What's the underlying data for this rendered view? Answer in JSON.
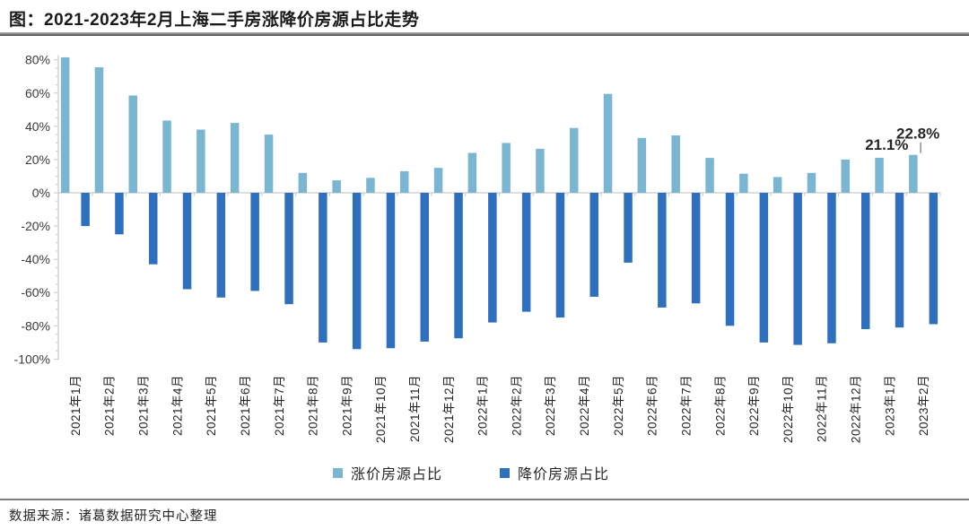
{
  "page": {
    "title": "图：2021-2023年2月上海二手房涨降价房源占比走势",
    "source": "数据来源：诸葛数据研究中心整理"
  },
  "colors": {
    "up_bar": "#7AB6D1",
    "down_bar": "#2E6FBE",
    "axis": "#C9C9C9",
    "tick_label": "#3A3A3A",
    "category_label": "#262626",
    "annotation_text": "#262626"
  },
  "legend": {
    "up_label": "涨价房源占比",
    "down_label": "降价房源占比"
  },
  "chart_data": {
    "type": "bar",
    "title": "图：2021-2023年2月上海二手房涨降价房源占比走势",
    "xlabel": "",
    "ylabel": "",
    "ylim": [
      -100,
      80
    ],
    "ytick_step": 20,
    "ytick_minor_step": 5,
    "ytick_format": "percent",
    "grid": false,
    "legend_position": "bottom",
    "categories": [
      "2021年1月",
      "2021年2月",
      "2021年3月",
      "2021年4月",
      "2021年5月",
      "2021年6月",
      "2021年7月",
      "2021年8月",
      "2021年9月",
      "2021年10月",
      "2021年11月",
      "2021年12月",
      "2022年1月",
      "2022年2月",
      "2022年3月",
      "2022年4月",
      "2022年5月",
      "2022年6月",
      "2022年7月",
      "2022年8月",
      "2022年9月",
      "2022年10月",
      "2022年11月",
      "2022年12月",
      "2023年1月",
      "2023年2月"
    ],
    "series": [
      {
        "name": "涨价房源占比",
        "color": "#7AB6D1",
        "values": [
          81.5,
          75.5,
          58.5,
          43.5,
          38,
          42,
          35,
          12,
          7.5,
          9,
          13,
          15,
          24,
          30,
          26.5,
          39,
          59.5,
          33,
          34.5,
          21,
          11.5,
          9.5,
          12,
          20,
          21.1,
          22.8
        ]
      },
      {
        "name": "降价房源占比",
        "color": "#2E6FBE",
        "values": [
          -20,
          -25,
          -43,
          -58,
          -63,
          -59,
          -67,
          -90,
          -94,
          -93.5,
          -89.5,
          -87.5,
          -78,
          -71.5,
          -75,
          -62.5,
          -42,
          -69,
          -66.5,
          -80,
          -90,
          -91.5,
          -90.5,
          -82,
          -81,
          -79
        ]
      }
    ],
    "annotations": [
      {
        "category": "2023年1月",
        "text": "21.1%",
        "leader_line": false
      },
      {
        "category": "2023年2月",
        "text": "22.8%",
        "leader_line": true
      }
    ]
  }
}
